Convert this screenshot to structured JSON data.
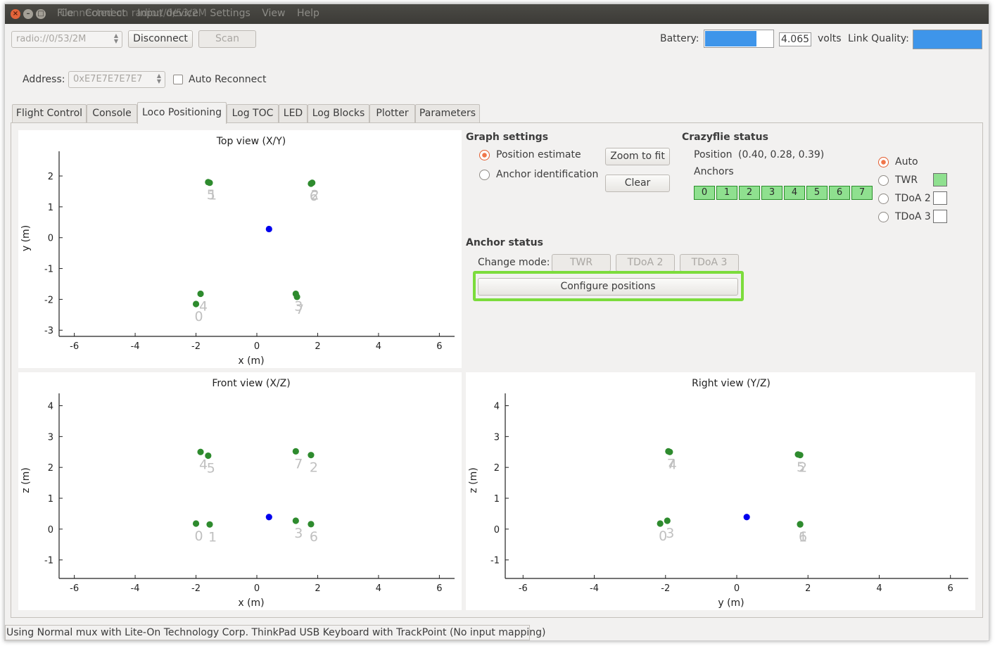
{
  "window": {
    "menus": [
      "File",
      "Connect",
      "Input device",
      "Settings",
      "View",
      "Help"
    ],
    "title_text": "Connected on radio://0/53/2M"
  },
  "toolbar": {
    "uri_value": "radio://0/53/2M",
    "disconnect_label": "Disconnect",
    "scan_label": "Scan",
    "battery_label": "Battery:",
    "battery_fraction": 0.85,
    "battery_value": "4.065",
    "volts_label": "volts",
    "link_quality_label": "Link Quality:",
    "link_quality_fraction": 1.0,
    "address_label": "Address:",
    "address_value": "0xE7E7E7E7E7",
    "auto_reconnect_label": "Auto Reconnect"
  },
  "tabs": [
    "Flight Control",
    "Console",
    "Loco Positioning",
    "Log TOC",
    "LED",
    "Log Blocks",
    "Plotter",
    "Parameters"
  ],
  "active_tab": "Loco Positioning",
  "graph_settings": {
    "heading": "Graph settings",
    "position_estimate_label": "Position estimate",
    "anchor_identification_label": "Anchor identification",
    "zoom_to_fit_label": "Zoom to fit",
    "clear_label": "Clear"
  },
  "crazyflie_status": {
    "heading": "Crazyflie status",
    "position_label": "Position",
    "position_value": "(0.40, 0.28, 0.39)",
    "anchors_label": "Anchors",
    "anchors": [
      "0",
      "1",
      "2",
      "3",
      "4",
      "5",
      "6",
      "7"
    ],
    "modes": [
      "Auto",
      "TWR",
      "TDoA 2",
      "TDoA 3"
    ],
    "selected_mode": "Auto",
    "active_mode_color": "#8fe08f"
  },
  "anchor_status": {
    "heading": "Anchor status",
    "change_mode_label": "Change mode:",
    "mode_buttons": [
      "TWR",
      "TDoA 2",
      "TDoA 3"
    ],
    "configure_positions_label": "Configure positions"
  },
  "status_bar": "Using Normal mux with Lite-On Technology Corp. ThinkPad USB Keyboard with TrackPoint (No input mapping)",
  "colors": {
    "anchor": "#2e8b2e",
    "crazyflie": "#0000ee",
    "anchor_label": "#c0c0c0",
    "highlight": "#7cdc3c"
  },
  "chart_data": [
    {
      "type": "scatter",
      "title": "Top view (X/Y)",
      "xlabel": "x (m)",
      "ylabel": "y (m)",
      "xlim": [
        -6.5,
        6.5
      ],
      "ylim": [
        -3.2,
        2.8
      ],
      "xticks": [
        -6,
        -4,
        -2,
        0,
        2,
        4,
        6
      ],
      "yticks": [
        -3,
        -2,
        -1,
        0,
        1,
        2
      ],
      "anchors": [
        {
          "label": "0",
          "x": -2.0,
          "y": -2.15
        },
        {
          "label": "1",
          "x": -1.55,
          "y": 1.78
        },
        {
          "label": "2",
          "x": 1.82,
          "y": 1.78
        },
        {
          "label": "3",
          "x": 1.28,
          "y": -1.82
        },
        {
          "label": "4",
          "x": -1.85,
          "y": -1.82
        },
        {
          "label": "5",
          "x": -1.6,
          "y": 1.8
        },
        {
          "label": "6",
          "x": 1.78,
          "y": 1.75
        },
        {
          "label": "7",
          "x": 1.32,
          "y": -1.92
        }
      ],
      "crazyflie": {
        "x": 0.4,
        "y": 0.28
      }
    },
    {
      "type": "scatter",
      "title": "Front view (X/Z)",
      "xlabel": "x (m)",
      "ylabel": "z (m)",
      "xlim": [
        -6.5,
        6.5
      ],
      "ylim": [
        -1.6,
        4.4
      ],
      "xticks": [
        -6,
        -4,
        -2,
        0,
        2,
        4,
        6
      ],
      "yticks": [
        -1,
        0,
        1,
        2,
        3,
        4
      ],
      "anchors": [
        {
          "label": "0",
          "x": -2.0,
          "y": 0.18
        },
        {
          "label": "1",
          "x": -1.55,
          "y": 0.15
        },
        {
          "label": "2",
          "x": 1.78,
          "y": 2.4
        },
        {
          "label": "3",
          "x": 1.28,
          "y": 0.27
        },
        {
          "label": "4",
          "x": -1.85,
          "y": 2.5
        },
        {
          "label": "5",
          "x": -1.6,
          "y": 2.38
        },
        {
          "label": "6",
          "x": 1.78,
          "y": 0.16
        },
        {
          "label": "7",
          "x": 1.28,
          "y": 2.52
        }
      ],
      "crazyflie": {
        "x": 0.4,
        "y": 0.39
      }
    },
    {
      "type": "scatter",
      "title": "Right view (Y/Z)",
      "xlabel": "y (m)",
      "ylabel": "z (m)",
      "xlim": [
        -6.5,
        6.5
      ],
      "ylim": [
        -1.6,
        4.4
      ],
      "xticks": [
        -6,
        -4,
        -2,
        0,
        2,
        4,
        6
      ],
      "yticks": [
        -1,
        0,
        1,
        2,
        3,
        4
      ],
      "anchors": [
        {
          "label": "0",
          "x": -2.15,
          "y": 0.18
        },
        {
          "label": "1",
          "x": 1.78,
          "y": 0.15
        },
        {
          "label": "2",
          "x": 1.78,
          "y": 2.4
        },
        {
          "label": "3",
          "x": -1.95,
          "y": 0.27
        },
        {
          "label": "4",
          "x": -1.88,
          "y": 2.5
        },
        {
          "label": "5",
          "x": 1.72,
          "y": 2.42
        },
        {
          "label": "6",
          "x": 1.78,
          "y": 0.16
        },
        {
          "label": "7",
          "x": -1.92,
          "y": 2.52
        }
      ],
      "crazyflie": {
        "x": 0.28,
        "y": 0.39
      }
    }
  ]
}
